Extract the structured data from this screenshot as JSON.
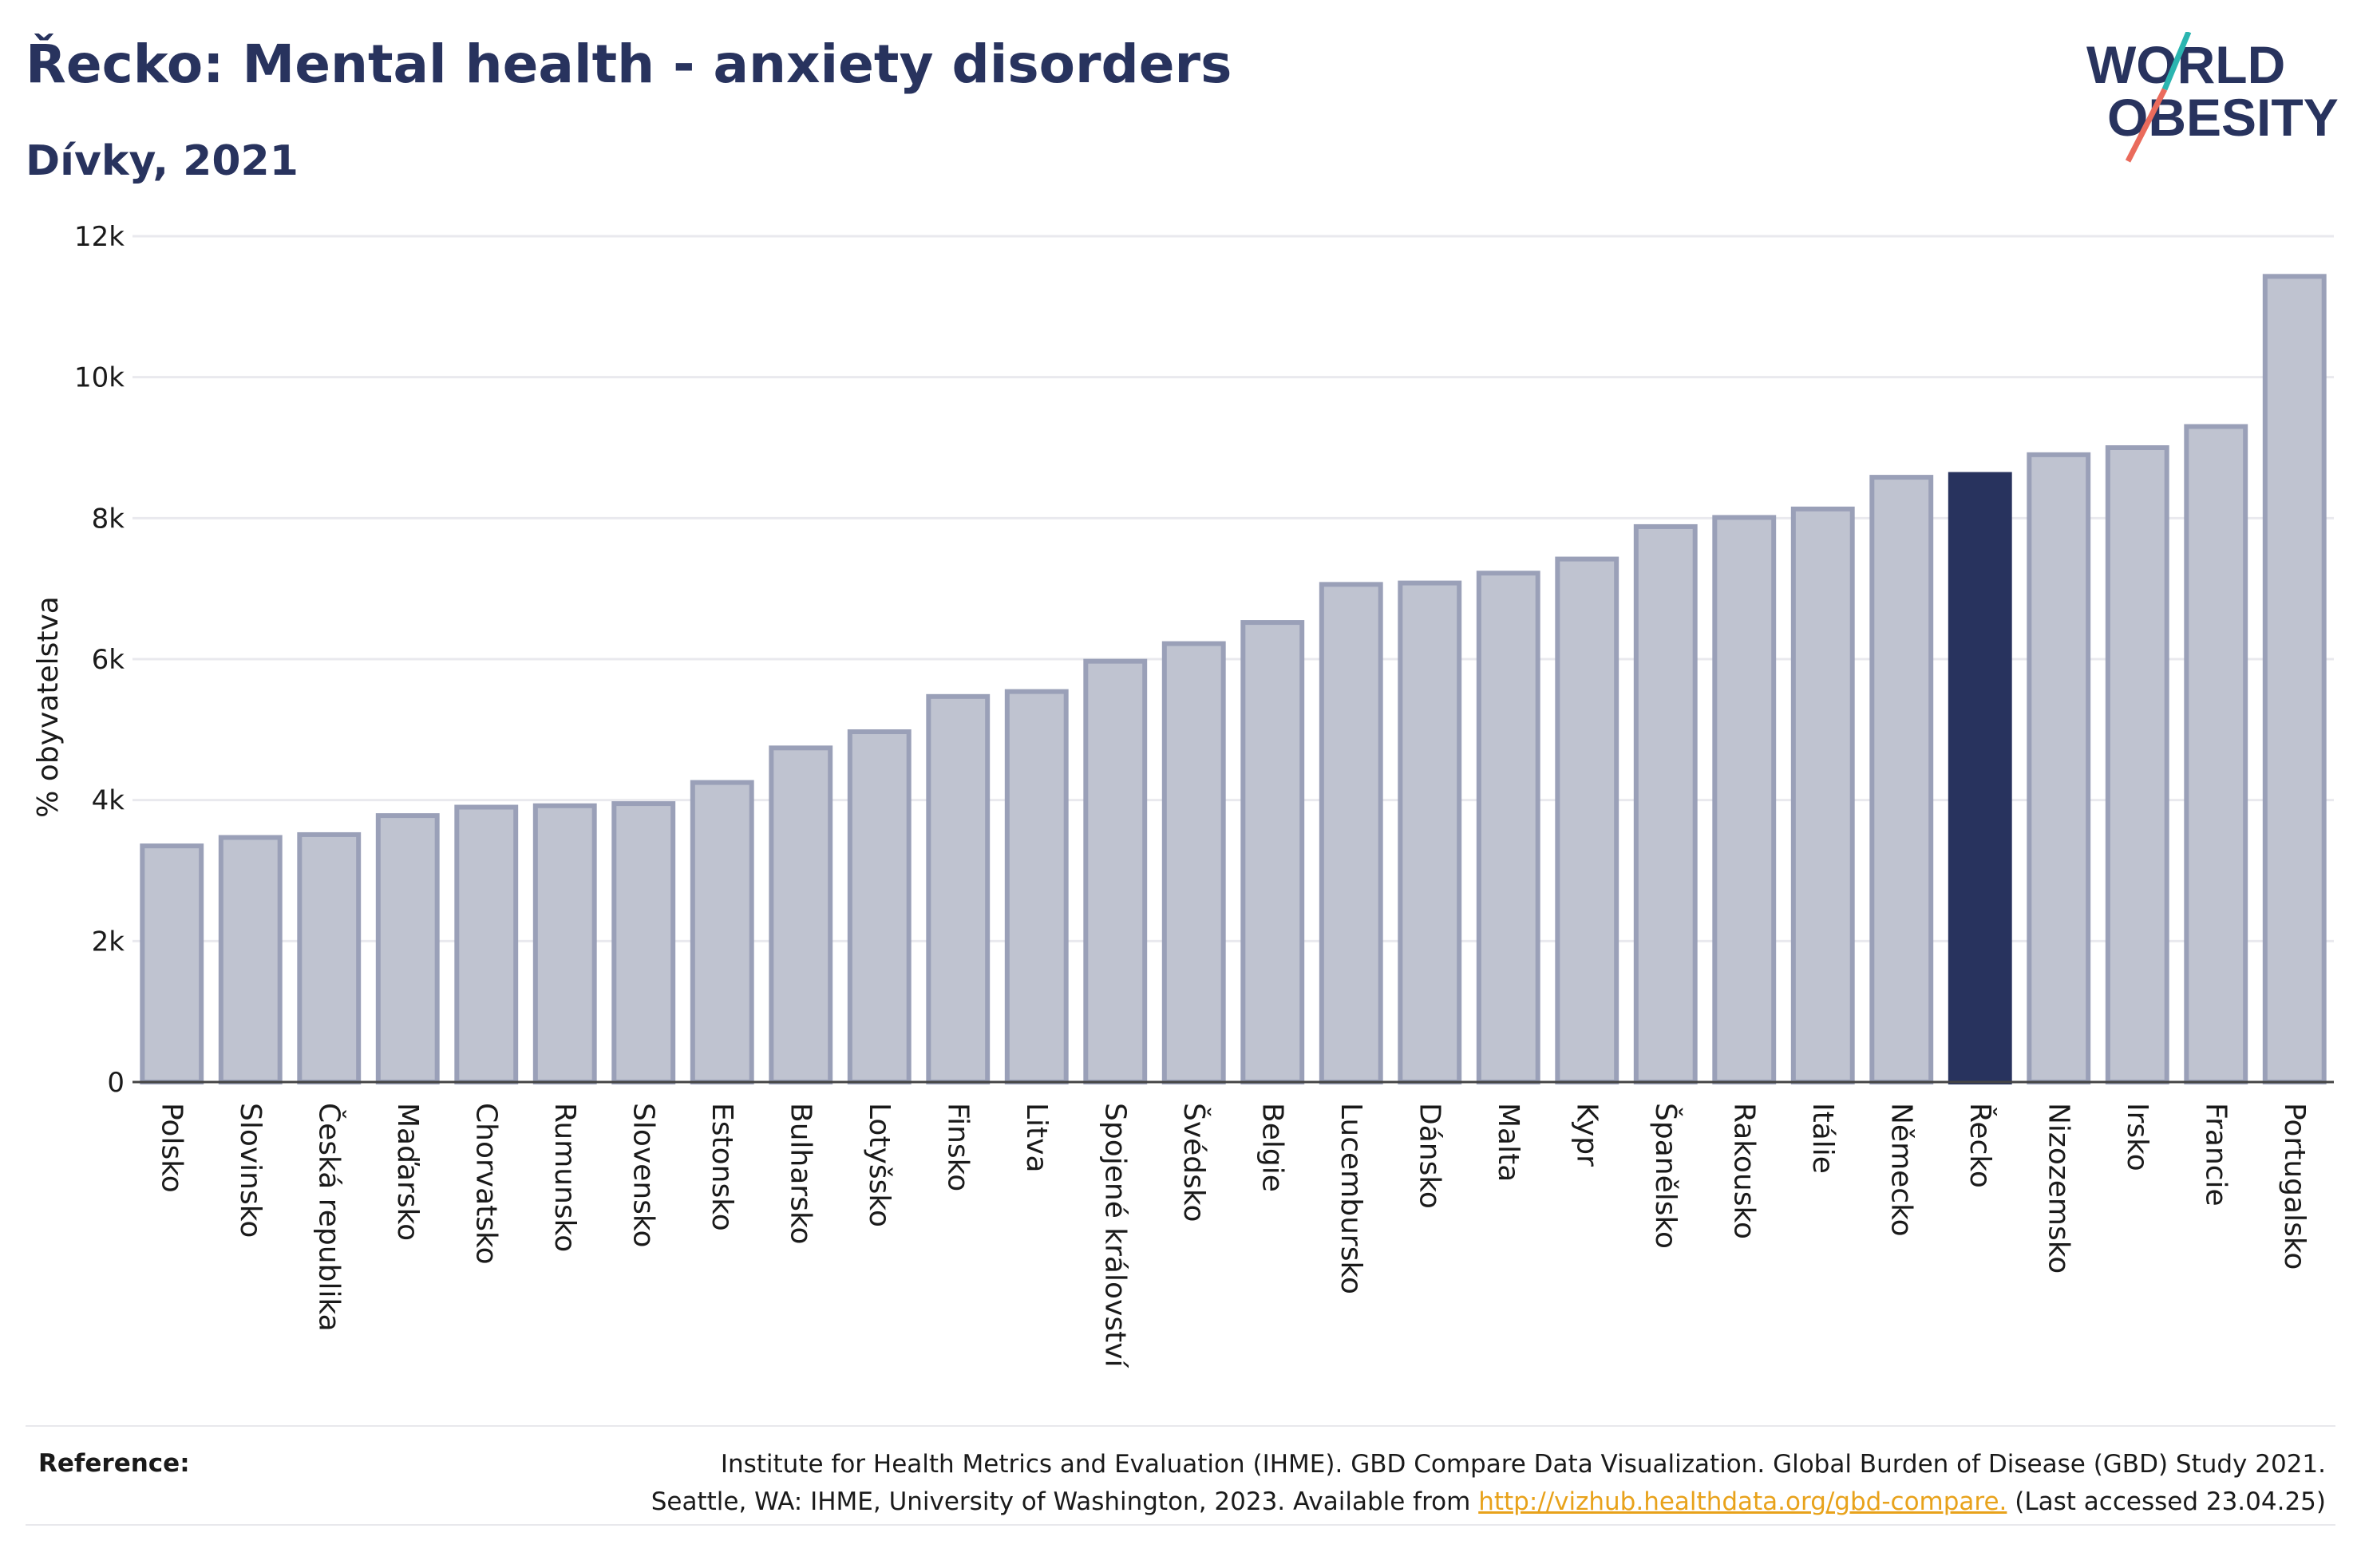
{
  "header": {
    "title": "Řecko: Mental health - anxiety disorders",
    "subtitle": "Dívky, 2021"
  },
  "logo": {
    "line1": "WORLD",
    "line2": "OBESITY",
    "colors": {
      "text": "#28335e",
      "slash_top": "#2bb5b0",
      "slash_bottom": "#ea6b5c"
    }
  },
  "colors": {
    "bar": "#bfc3d0",
    "bar_border": "#9aa0b8",
    "highlight": "#28335e",
    "grid": "#e9e9ee",
    "axis": "#444444",
    "text": "#1a1a1a"
  },
  "chart_data": {
    "type": "bar",
    "ylabel": "% obyvatelstva",
    "ylim": [
      0,
      12000
    ],
    "yticks": [
      0,
      2000,
      4000,
      6000,
      8000,
      10000,
      12000
    ],
    "ytick_labels": [
      "0",
      "2k",
      "4k",
      "6k",
      "8k",
      "10k",
      "12k"
    ],
    "grid": true,
    "highlight": "Řecko",
    "categories": [
      "Polsko",
      "Slovinsko",
      "Česká republika",
      "Maďarsko",
      "Chorvatsko",
      "Rumunsko",
      "Slovensko",
      "Estonsko",
      "Bulharsko",
      "Lotyšsko",
      "Finsko",
      "Litva",
      "Spojené království",
      "Švédsko",
      "Belgie",
      "Lucembursko",
      "Dánsko",
      "Malta",
      "Kypr",
      "Španělsko",
      "Rakousko",
      "Itálie",
      "Německo",
      "Řecko",
      "Nizozemsko",
      "Irsko",
      "Francie",
      "Portugalsko"
    ],
    "values": [
      3350,
      3470,
      3510,
      3780,
      3900,
      3920,
      3950,
      4250,
      4740,
      4970,
      5470,
      5540,
      5970,
      6220,
      6520,
      7060,
      7080,
      7220,
      7420,
      7880,
      8010,
      8130,
      8580,
      8620,
      8900,
      9000,
      9300,
      11430
    ]
  },
  "reference": {
    "label": "Reference:",
    "line1": "Institute for Health Metrics and Evaluation (IHME). GBD Compare Data Visualization. Global Burden of Disease (GBD) Study 2021.",
    "line2_prefix": "Seattle, WA: IHME, University of Washington, 2023. Available from",
    "link": "http://vizhub.healthdata.org/gbd-compare.",
    "line2_suffix": "(Last accessed 23.04.25)"
  }
}
